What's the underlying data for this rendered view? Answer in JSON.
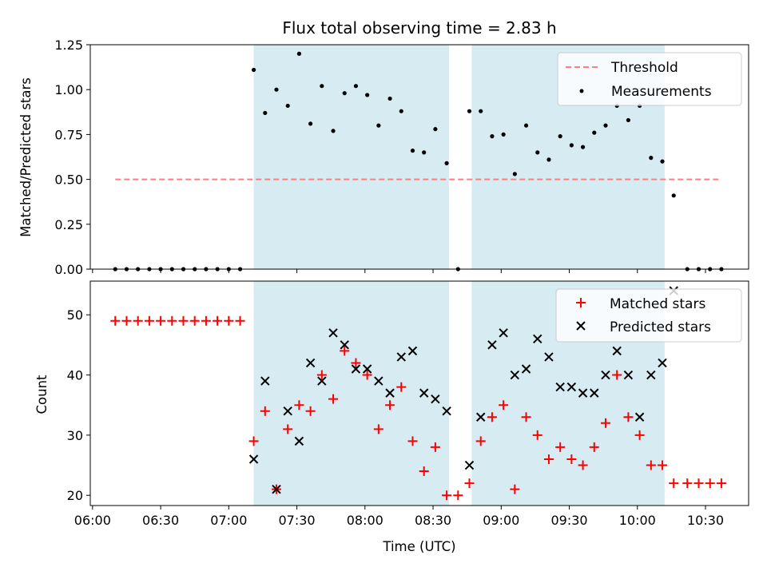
{
  "chart_data": [
    {
      "type": "scatter",
      "panel": "top",
      "title": "Flux total observing time = 2.83 h",
      "ylabel": "Matched/Predicted stars",
      "ylim": [
        0,
        1.25
      ],
      "yticks": [
        0.0,
        0.25,
        0.5,
        0.75,
        1.0,
        1.25
      ],
      "ytick_labels": [
        "0.00",
        "0.25",
        "0.50",
        "0.75",
        "1.00",
        "1.25"
      ],
      "legend_placement": "upper-right",
      "threshold": {
        "name": "Threshold",
        "value": 0.5,
        "x_start": "06:10",
        "x_end": "10:37",
        "color": "#ff7f7f"
      },
      "series": [
        {
          "name": "Measurements",
          "color": "#000000",
          "x": [
            "06:10",
            "06:15",
            "06:20",
            "06:25",
            "06:30",
            "06:35",
            "06:40",
            "06:45",
            "06:50",
            "06:55",
            "07:00",
            "07:05",
            "07:11",
            "07:16",
            "07:21",
            "07:26",
            "07:31",
            "07:36",
            "07:41",
            "07:46",
            "07:51",
            "07:56",
            "08:01",
            "08:06",
            "08:11",
            "08:16",
            "08:21",
            "08:26",
            "08:31",
            "08:36",
            "08:41",
            "08:46",
            "08:51",
            "08:56",
            "09:01",
            "09:06",
            "09:11",
            "09:16",
            "09:21",
            "09:26",
            "09:31",
            "09:36",
            "09:41",
            "09:46",
            "09:51",
            "09:56",
            "10:01",
            "10:06",
            "10:11",
            "10:16",
            "10:22",
            "10:27",
            "10:32",
            "10:37"
          ],
          "y": [
            0,
            0,
            0,
            0,
            0,
            0,
            0,
            0,
            0,
            0,
            0,
            0,
            1.11,
            0.87,
            1.0,
            0.91,
            1.2,
            0.81,
            1.02,
            0.77,
            0.98,
            1.02,
            0.97,
            0.8,
            0.95,
            0.88,
            0.66,
            0.65,
            0.78,
            0.59,
            0.0,
            0.88,
            0.88,
            0.74,
            0.75,
            0.53,
            0.8,
            0.65,
            0.61,
            0.74,
            0.69,
            0.68,
            0.76,
            0.8,
            0.91,
            0.83,
            0.91,
            0.62,
            0.6,
            0.41,
            0,
            0,
            0,
            0
          ]
        }
      ]
    },
    {
      "type": "scatter",
      "panel": "bottom",
      "xlabel": "Time (UTC)",
      "ylabel": "Count",
      "ylim": [
        18.3,
        55.6
      ],
      "yticks": [
        20,
        30,
        40,
        50
      ],
      "ytick_labels": [
        "20",
        "30",
        "40",
        "50"
      ],
      "xlim": [
        "05:59",
        "10:49"
      ],
      "xticks": [
        "06:00",
        "06:30",
        "07:00",
        "07:30",
        "08:00",
        "08:30",
        "09:00",
        "09:30",
        "10:00",
        "10:30"
      ],
      "legend_placement": "upper-right",
      "series": [
        {
          "name": "Matched stars",
          "marker": "plus",
          "color": "#ff0000",
          "x": [
            "06:10",
            "06:15",
            "06:20",
            "06:25",
            "06:30",
            "06:35",
            "06:40",
            "06:45",
            "06:50",
            "06:55",
            "07:00",
            "07:05",
            "07:11",
            "07:16",
            "07:21",
            "07:26",
            "07:31",
            "07:36",
            "07:41",
            "07:46",
            "07:51",
            "07:56",
            "08:01",
            "08:06",
            "08:11",
            "08:16",
            "08:21",
            "08:26",
            "08:31",
            "08:36",
            "08:41",
            "08:46",
            "08:51",
            "08:56",
            "09:01",
            "09:06",
            "09:11",
            "09:16",
            "09:21",
            "09:26",
            "09:31",
            "09:36",
            "09:41",
            "09:46",
            "09:51",
            "09:56",
            "10:01",
            "10:06",
            "10:11",
            "10:16",
            "10:22",
            "10:27",
            "10:32",
            "10:37"
          ],
          "y": [
            49,
            49,
            49,
            49,
            49,
            49,
            49,
            49,
            49,
            49,
            49,
            49,
            29,
            34,
            21,
            31,
            35,
            34,
            40,
            36,
            44,
            42,
            40,
            31,
            35,
            38,
            29,
            24,
            28,
            20,
            20,
            22,
            29,
            33,
            35,
            21,
            33,
            30,
            26,
            28,
            26,
            25,
            28,
            32,
            40,
            33,
            30,
            25,
            25,
            22,
            22,
            22,
            22,
            22
          ]
        },
        {
          "name": "Predicted stars",
          "marker": "x",
          "color": "#000000",
          "x": [
            "07:11",
            "07:16",
            "07:21",
            "07:26",
            "07:31",
            "07:36",
            "07:41",
            "07:46",
            "07:51",
            "07:56",
            "08:01",
            "08:06",
            "08:11",
            "08:16",
            "08:21",
            "08:26",
            "08:31",
            "08:36",
            "08:46",
            "08:51",
            "08:56",
            "09:01",
            "09:06",
            "09:11",
            "09:16",
            "09:21",
            "09:26",
            "09:31",
            "09:36",
            "09:41",
            "09:46",
            "09:51",
            "09:56",
            "10:01",
            "10:06",
            "10:11",
            "10:16"
          ],
          "y": [
            26,
            39,
            21,
            34,
            29,
            42,
            39,
            47,
            45,
            41,
            41,
            39,
            37,
            43,
            44,
            37,
            36,
            34,
            25,
            33,
            45,
            47,
            40,
            41,
            46,
            43,
            38,
            38,
            37,
            37,
            40,
            44,
            40,
            33,
            40,
            42,
            54
          ]
        }
      ]
    }
  ],
  "observing_windows": [
    {
      "start": "07:11",
      "end": "08:37",
      "color": "#add8e6"
    },
    {
      "start": "08:47",
      "end": "10:12",
      "color": "#add8e6"
    }
  ]
}
